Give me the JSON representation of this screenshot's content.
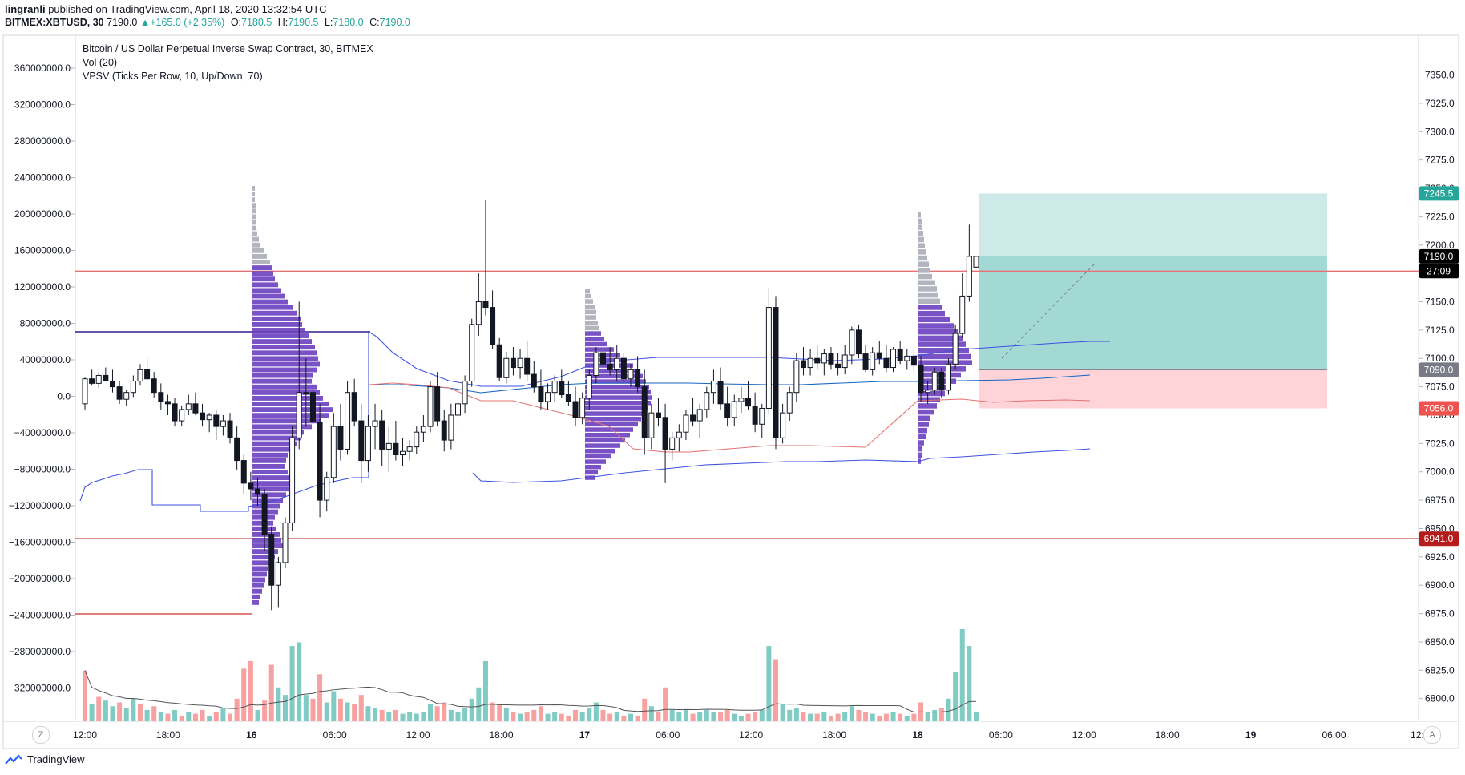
{
  "header": {
    "author": "lingranli",
    "published_text": "published on TradingView.com, April 18, 2020 13:32:54 UTC",
    "symbol": "BITMEX:XBTUSD, 30",
    "last": "7190.0",
    "change": "+165.0 (+2.35%)",
    "ohlc": [
      {
        "label": "O:",
        "value": "7180.5"
      },
      {
        "label": "H:",
        "value": "7190.5"
      },
      {
        "label": "L:",
        "value": "7180.0"
      },
      {
        "label": "C:",
        "value": "7190.0"
      }
    ]
  },
  "legend": {
    "title": "Bitcoin / US Dollar Perpetual Inverse Swap Contract, 30, BITMEX",
    "vol": "Vol (20)",
    "vpsv": "VPSV (Ticks Per Row, 10, Up/Down, 70)"
  },
  "footer": {
    "brand": "TradingView",
    "zoom_left": "Z",
    "zoom_right": "A"
  },
  "colors": {
    "up": "#26a69a",
    "down": "#ef5350",
    "profile_up": "#6a3fbf",
    "profile_grey": "#b2b5be",
    "vol_up": "#80cbc4",
    "vol_down": "#f7a1a1",
    "target_zone": "#b2dfdb",
    "stop_zone": "#ffcdd2",
    "resistance": "#e57373",
    "support": "#b71c1c",
    "poc": "#311b92",
    "vwap_band": "#3f51e0"
  },
  "chart_data": {
    "type": "candlestick",
    "price_axis": {
      "ylim": [
        6780,
        7385
      ],
      "ticks": [
        "7350.0",
        "7325.0",
        "7300.0",
        "7275.0",
        "7250.0",
        "7225.0",
        "7200.0",
        "7175.0",
        "7150.0",
        "7125.0",
        "7100.0",
        "7075.0",
        "7050.0",
        "7025.0",
        "7000.0",
        "6975.0",
        "6950.0",
        "6925.0",
        "6900.0",
        "6875.0",
        "6850.0",
        "6825.0",
        "6800.0"
      ]
    },
    "left_axis": {
      "ticks": [
        "360000000.0",
        "320000000.0",
        "280000000.0",
        "240000000.0",
        "200000000.0",
        "160000000.0",
        "120000000.0",
        "80000000.0",
        "40000000.0",
        "0.0",
        "−40000000.0",
        "−80000000.0",
        "−120000000.0",
        "−160000000.0",
        "−200000000.0",
        "−240000000.0",
        "−280000000.0",
        "−320000000.0"
      ]
    },
    "time_axis": {
      "ticks": [
        "12:00",
        "18:00",
        "16",
        "06:00",
        "12:00",
        "18:00",
        "17",
        "06:00",
        "12:00",
        "18:00",
        "18",
        "06:00",
        "12:00",
        "18:00",
        "19",
        "06:00",
        "12:"
      ]
    },
    "price_labels": [
      {
        "text": "7245.5",
        "price": 7245.5,
        "color": "#26a69a"
      },
      {
        "text": "7190.0",
        "price": 7190.0,
        "color": "#000000"
      },
      {
        "text": "27:09",
        "price": 7177.0,
        "color": "#000000"
      },
      {
        "text": "7090.0",
        "price": 7090.0,
        "color": "#787b86"
      },
      {
        "text": "7056.0",
        "price": 7056.0,
        "color": "#ef5350"
      },
      {
        "text": "6941.0",
        "price": 6941.0,
        "color": "#b71c1c"
      }
    ],
    "horizontal_levels": [
      7177,
      6941
    ],
    "position": {
      "entry": 7090.0,
      "target": 7245.5,
      "stop": 7056.0,
      "current": 7190.0
    },
    "candles": [
      [
        7060,
        7083,
        7055,
        7082
      ],
      [
        7082,
        7090,
        7076,
        7078
      ],
      [
        7078,
        7088,
        7074,
        7085
      ],
      [
        7085,
        7092,
        7080,
        7080
      ],
      [
        7080,
        7090,
        7070,
        7075
      ],
      [
        7075,
        7080,
        7060,
        7064
      ],
      [
        7064,
        7072,
        7058,
        7070
      ],
      [
        7070,
        7085,
        7066,
        7080
      ],
      [
        7080,
        7095,
        7076,
        7090
      ],
      [
        7090,
        7100,
        7080,
        7082
      ],
      [
        7082,
        7088,
        7065,
        7070
      ],
      [
        7070,
        7078,
        7055,
        7062
      ],
      [
        7062,
        7068,
        7050,
        7060
      ],
      [
        7060,
        7065,
        7040,
        7045
      ],
      [
        7045,
        7058,
        7040,
        7055
      ],
      [
        7055,
        7068,
        7050,
        7060
      ],
      [
        7060,
        7070,
        7050,
        7052
      ],
      [
        7052,
        7060,
        7040,
        7046
      ],
      [
        7046,
        7052,
        7035,
        7050
      ],
      [
        7050,
        7055,
        7028,
        7040
      ],
      [
        7040,
        7050,
        7032,
        7045
      ],
      [
        7045,
        7052,
        7025,
        7030
      ],
      [
        7030,
        7040,
        7002,
        7010
      ],
      [
        7010,
        7015,
        6980,
        6990
      ],
      [
        6990,
        7000,
        6975,
        6985
      ],
      [
        6985,
        6995,
        6970,
        6980
      ],
      [
        6980,
        6985,
        6930,
        6945
      ],
      [
        6945,
        6952,
        6878,
        6900
      ],
      [
        6900,
        6925,
        6880,
        6920
      ],
      [
        6920,
        6960,
        6915,
        6955
      ],
      [
        6955,
        7040,
        6948,
        7030
      ],
      [
        7030,
        7150,
        7020,
        7070
      ],
      [
        7070,
        7100,
        7040,
        7070
      ],
      [
        7070,
        7085,
        7040,
        7044
      ],
      [
        7044,
        7060,
        6960,
        6975
      ],
      [
        6975,
        7000,
        6965,
        6995
      ],
      [
        6995,
        7052,
        6990,
        7040
      ],
      [
        7040,
        7060,
        7010,
        7020
      ],
      [
        7020,
        7080,
        7015,
        7070
      ],
      [
        7070,
        7082,
        7040,
        7045
      ],
      [
        7045,
        7060,
        6990,
        7010
      ],
      [
        7010,
        7050,
        7000,
        7040
      ],
      [
        7040,
        7060,
        7020,
        7045
      ],
      [
        7045,
        7055,
        7005,
        7020
      ],
      [
        7020,
        7040,
        7000,
        7025
      ],
      [
        7025,
        7045,
        7010,
        7015
      ],
      [
        7015,
        7030,
        7005,
        7018
      ],
      [
        7018,
        7028,
        7010,
        7022
      ],
      [
        7022,
        7040,
        7016,
        7035
      ],
      [
        7035,
        7050,
        7026,
        7040
      ],
      [
        7040,
        7080,
        7035,
        7075
      ],
      [
        7075,
        7088,
        7040,
        7045
      ],
      [
        7045,
        7055,
        7018,
        7028
      ],
      [
        7028,
        7060,
        7020,
        7050
      ],
      [
        7050,
        7065,
        7040,
        7060
      ],
      [
        7060,
        7085,
        7052,
        7080
      ],
      [
        7080,
        7135,
        7075,
        7130
      ],
      [
        7130,
        7175,
        7120,
        7150
      ],
      [
        7150,
        7240,
        7138,
        7145
      ],
      [
        7145,
        7160,
        7108,
        7112
      ],
      [
        7112,
        7118,
        7080,
        7083
      ],
      [
        7083,
        7106,
        7078,
        7100
      ],
      [
        7100,
        7110,
        7085,
        7092
      ],
      [
        7092,
        7108,
        7082,
        7100
      ],
      [
        7100,
        7115,
        7080,
        7086
      ],
      [
        7086,
        7098,
        7070,
        7075
      ],
      [
        7075,
        7090,
        7055,
        7062
      ],
      [
        7062,
        7078,
        7055,
        7070
      ],
      [
        7070,
        7085,
        7062,
        7080
      ],
      [
        7080,
        7090,
        7065,
        7068
      ],
      [
        7068,
        7080,
        7058,
        7062
      ],
      [
        7062,
        7075,
        7040,
        7048
      ],
      [
        7048,
        7070,
        7042,
        7065
      ],
      [
        7065,
        7090,
        7055,
        7085
      ],
      [
        7085,
        7110,
        7078,
        7105
      ],
      [
        7105,
        7120,
        7090,
        7095
      ],
      [
        7095,
        7110,
        7085,
        7090
      ],
      [
        7090,
        7112,
        7080,
        7100
      ],
      [
        7100,
        7105,
        7078,
        7082
      ],
      [
        7082,
        7095,
        7075,
        7090
      ],
      [
        7090,
        7102,
        7070,
        7075
      ],
      [
        7075,
        7090,
        7015,
        7030
      ],
      [
        7030,
        7060,
        7020,
        7052
      ],
      [
        7052,
        7065,
        7040,
        7048
      ],
      [
        7048,
        7060,
        6990,
        7020
      ],
      [
        7020,
        7035,
        7010,
        7030
      ],
      [
        7030,
        7042,
        7018,
        7035
      ],
      [
        7035,
        7055,
        7028,
        7050
      ],
      [
        7050,
        7065,
        7040,
        7045
      ],
      [
        7045,
        7060,
        7030,
        7055
      ],
      [
        7055,
        7075,
        7048,
        7070
      ],
      [
        7070,
        7090,
        7060,
        7080
      ],
      [
        7080,
        7092,
        7055,
        7060
      ],
      [
        7060,
        7075,
        7040,
        7048
      ],
      [
        7048,
        7068,
        7040,
        7062
      ],
      [
        7062,
        7075,
        7052,
        7065
      ],
      [
        7065,
        7080,
        7055,
        7058
      ],
      [
        7058,
        7070,
        7035,
        7042
      ],
      [
        7042,
        7060,
        7030,
        7056
      ],
      [
        7056,
        7162,
        7050,
        7145
      ],
      [
        7145,
        7155,
        7020,
        7030
      ],
      [
        7030,
        7060,
        7025,
        7052
      ],
      [
        7052,
        7075,
        7045,
        7070
      ],
      [
        7070,
        7105,
        7062,
        7098
      ],
      [
        7098,
        7110,
        7085,
        7092
      ],
      [
        7092,
        7108,
        7085,
        7100
      ],
      [
        7100,
        7112,
        7090,
        7096
      ],
      [
        7096,
        7108,
        7085,
        7104
      ],
      [
        7104,
        7110,
        7090,
        7095
      ],
      [
        7095,
        7105,
        7085,
        7092
      ],
      [
        7092,
        7112,
        7086,
        7103
      ],
      [
        7103,
        7128,
        7095,
        7125
      ],
      [
        7125,
        7130,
        7100,
        7104
      ],
      [
        7104,
        7112,
        7088,
        7090
      ],
      [
        7090,
        7110,
        7085,
        7105
      ],
      [
        7105,
        7115,
        7095,
        7100
      ],
      [
        7100,
        7112,
        7088,
        7092
      ],
      [
        7092,
        7110,
        7088,
        7108
      ],
      [
        7108,
        7115,
        7095,
        7098
      ],
      [
        7098,
        7108,
        7090,
        7102
      ],
      [
        7102,
        7108,
        7088,
        7094
      ],
      [
        7094,
        7102,
        7062,
        7070
      ],
      [
        7070,
        7080,
        7060,
        7072
      ],
      [
        7072,
        7092,
        7068,
        7088
      ],
      [
        7088,
        7092,
        7065,
        7072
      ],
      [
        7072,
        7100,
        7068,
        7095
      ],
      [
        7095,
        7130,
        7090,
        7122
      ],
      [
        7122,
        7175,
        7118,
        7155
      ],
      [
        7155,
        7218,
        7150,
        7190
      ],
      [
        7180.5,
        7190.5,
        7180,
        7190
      ]
    ],
    "volume": [
      {
        "v": 0.27,
        "up": false
      },
      {
        "v": 0.09,
        "up": true
      },
      {
        "v": 0.13,
        "up": false
      },
      {
        "v": 0.11,
        "up": true
      },
      {
        "v": 0.08,
        "up": true
      },
      {
        "v": 0.1,
        "up": false
      },
      {
        "v": 0.07,
        "up": true
      },
      {
        "v": 0.12,
        "up": true
      },
      {
        "v": 0.09,
        "up": false
      },
      {
        "v": 0.06,
        "up": true
      },
      {
        "v": 0.08,
        "up": false
      },
      {
        "v": 0.05,
        "up": true
      },
      {
        "v": 0.04,
        "up": false
      },
      {
        "v": 0.06,
        "up": true
      },
      {
        "v": 0.03,
        "up": false
      },
      {
        "v": 0.05,
        "up": true
      },
      {
        "v": 0.04,
        "up": false
      },
      {
        "v": 0.06,
        "up": false
      },
      {
        "v": 0.03,
        "up": true
      },
      {
        "v": 0.05,
        "up": false
      },
      {
        "v": 0.07,
        "up": true
      },
      {
        "v": 0.04,
        "up": false
      },
      {
        "v": 0.12,
        "up": false
      },
      {
        "v": 0.28,
        "up": false
      },
      {
        "v": 0.32,
        "up": false
      },
      {
        "v": 0.06,
        "up": true
      },
      {
        "v": 0.11,
        "up": false
      },
      {
        "v": 0.3,
        "up": false
      },
      {
        "v": 0.18,
        "up": true
      },
      {
        "v": 0.14,
        "up": true
      },
      {
        "v": 0.4,
        "up": true
      },
      {
        "v": 0.42,
        "up": true
      },
      {
        "v": 0.14,
        "up": true
      },
      {
        "v": 0.12,
        "up": false
      },
      {
        "v": 0.25,
        "up": false
      },
      {
        "v": 0.1,
        "up": true
      },
      {
        "v": 0.16,
        "up": true
      },
      {
        "v": 0.12,
        "up": false
      },
      {
        "v": 0.1,
        "up": true
      },
      {
        "v": 0.09,
        "up": false
      },
      {
        "v": 0.14,
        "up": false
      },
      {
        "v": 0.08,
        "up": true
      },
      {
        "v": 0.07,
        "up": true
      },
      {
        "v": 0.06,
        "up": false
      },
      {
        "v": 0.05,
        "up": true
      },
      {
        "v": 0.06,
        "up": false
      },
      {
        "v": 0.04,
        "up": true
      },
      {
        "v": 0.05,
        "up": true
      },
      {
        "v": 0.04,
        "up": true
      },
      {
        "v": 0.05,
        "up": true
      },
      {
        "v": 0.09,
        "up": true
      },
      {
        "v": 0.08,
        "up": false
      },
      {
        "v": 0.1,
        "up": false
      },
      {
        "v": 0.06,
        "up": true
      },
      {
        "v": 0.05,
        "up": true
      },
      {
        "v": 0.07,
        "up": true
      },
      {
        "v": 0.12,
        "up": true
      },
      {
        "v": 0.18,
        "up": true
      },
      {
        "v": 0.32,
        "up": true
      },
      {
        "v": 0.1,
        "up": false
      },
      {
        "v": 0.09,
        "up": false
      },
      {
        "v": 0.07,
        "up": true
      },
      {
        "v": 0.05,
        "up": false
      },
      {
        "v": 0.04,
        "up": true
      },
      {
        "v": 0.05,
        "up": false
      },
      {
        "v": 0.06,
        "up": false
      },
      {
        "v": 0.08,
        "up": false
      },
      {
        "v": 0.04,
        "up": true
      },
      {
        "v": 0.05,
        "up": true
      },
      {
        "v": 0.04,
        "up": false
      },
      {
        "v": 0.03,
        "up": false
      },
      {
        "v": 0.06,
        "up": false
      },
      {
        "v": 0.05,
        "up": true
      },
      {
        "v": 0.07,
        "up": true
      },
      {
        "v": 0.1,
        "up": true
      },
      {
        "v": 0.06,
        "up": false
      },
      {
        "v": 0.04,
        "up": false
      },
      {
        "v": 0.05,
        "up": true
      },
      {
        "v": 0.03,
        "up": false
      },
      {
        "v": 0.04,
        "up": true
      },
      {
        "v": 0.03,
        "up": false
      },
      {
        "v": 0.12,
        "up": false
      },
      {
        "v": 0.08,
        "up": true
      },
      {
        "v": 0.05,
        "up": false
      },
      {
        "v": 0.18,
        "up": false
      },
      {
        "v": 0.06,
        "up": true
      },
      {
        "v": 0.05,
        "up": true
      },
      {
        "v": 0.06,
        "up": true
      },
      {
        "v": 0.04,
        "up": false
      },
      {
        "v": 0.05,
        "up": true
      },
      {
        "v": 0.06,
        "up": true
      },
      {
        "v": 0.05,
        "up": true
      },
      {
        "v": 0.05,
        "up": false
      },
      {
        "v": 0.06,
        "up": false
      },
      {
        "v": 0.04,
        "up": true
      },
      {
        "v": 0.03,
        "up": true
      },
      {
        "v": 0.04,
        "up": false
      },
      {
        "v": 0.05,
        "up": false
      },
      {
        "v": 0.06,
        "up": true
      },
      {
        "v": 0.4,
        "up": true
      },
      {
        "v": 0.33,
        "up": false
      },
      {
        "v": 0.09,
        "up": true
      },
      {
        "v": 0.06,
        "up": true
      },
      {
        "v": 0.07,
        "up": true
      },
      {
        "v": 0.05,
        "up": false
      },
      {
        "v": 0.04,
        "up": true
      },
      {
        "v": 0.04,
        "up": false
      },
      {
        "v": 0.05,
        "up": true
      },
      {
        "v": 0.03,
        "up": false
      },
      {
        "v": 0.04,
        "up": false
      },
      {
        "v": 0.05,
        "up": true
      },
      {
        "v": 0.08,
        "up": true
      },
      {
        "v": 0.06,
        "up": false
      },
      {
        "v": 0.05,
        "up": false
      },
      {
        "v": 0.04,
        "up": true
      },
      {
        "v": 0.03,
        "up": false
      },
      {
        "v": 0.04,
        "up": false
      },
      {
        "v": 0.05,
        "up": true
      },
      {
        "v": 0.04,
        "up": false
      },
      {
        "v": 0.03,
        "up": true
      },
      {
        "v": 0.04,
        "up": false
      },
      {
        "v": 0.1,
        "up": false
      },
      {
        "v": 0.05,
        "up": true
      },
      {
        "v": 0.06,
        "up": true
      },
      {
        "v": 0.07,
        "up": false
      },
      {
        "v": 0.12,
        "up": true
      },
      {
        "v": 0.26,
        "up": true
      },
      {
        "v": 0.49,
        "up": true
      },
      {
        "v": 0.4,
        "up": true
      },
      {
        "v": 0.05,
        "up": true
      }
    ]
  }
}
